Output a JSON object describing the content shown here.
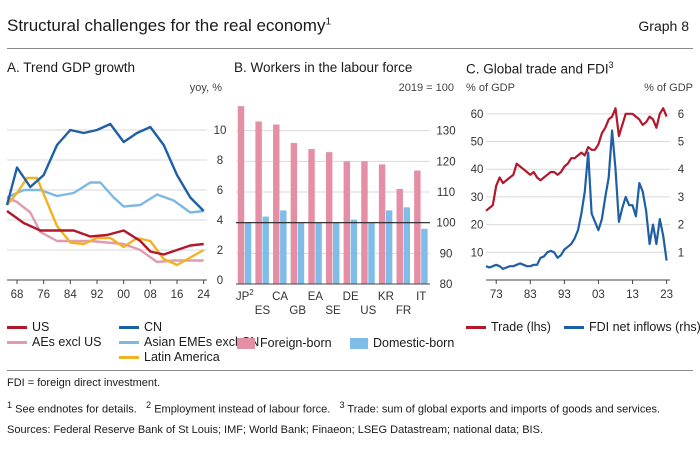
{
  "title": "Structural challenges for the real economy",
  "title_sup": "1",
  "graph_label": "Graph 8",
  "colors": {
    "us": "#b2182b",
    "cn": "#1f5fa6",
    "aes": "#e29ab1",
    "asia": "#7db8e0",
    "latam": "#f0b323",
    "foreign": "#e58fa6",
    "domestic": "#7fbde8",
    "trade": "#b2182b",
    "fdi": "#1f5fa6"
  },
  "chart_data": [
    {
      "id": "A",
      "type": "line",
      "title": "A. Trend GDP growth",
      "ylabel": "yoy, %",
      "ylim": [
        0,
        12
      ],
      "yticks": [
        0,
        2,
        4,
        6,
        8,
        10
      ],
      "xlim": [
        1965,
        2025
      ],
      "xticks": [
        1968,
        1976,
        1984,
        1992,
        2000,
        2008,
        2016,
        2024
      ],
      "xtick_labels": [
        "68",
        "76",
        "84",
        "92",
        "00",
        "08",
        "16",
        "24"
      ],
      "series": [
        {
          "name": "US",
          "key": "us",
          "x": [
            1965,
            1970,
            1975,
            1980,
            1985,
            1990,
            1995,
            2000,
            2005,
            2008,
            2012,
            2016,
            2020,
            2024
          ],
          "y": [
            4.6,
            3.8,
            3.3,
            3.3,
            3.3,
            2.9,
            3.0,
            3.3,
            2.6,
            1.9,
            1.7,
            2.0,
            2.3,
            2.4
          ]
        },
        {
          "name": "CN",
          "key": "cn",
          "x": [
            1965,
            1968,
            1972,
            1976,
            1980,
            1984,
            1988,
            1992,
            1996,
            2000,
            2004,
            2008,
            2012,
            2016,
            2020,
            2024
          ],
          "y": [
            5.0,
            7.5,
            6.2,
            7.0,
            9.0,
            10.0,
            9.8,
            10.0,
            10.4,
            9.2,
            9.8,
            10.2,
            9.0,
            7.0,
            5.5,
            4.6
          ]
        },
        {
          "name": "AEs excl US",
          "key": "aes",
          "x": [
            1965,
            1968,
            1972,
            1975,
            1980,
            1985,
            1990,
            1995,
            2000,
            2005,
            2010,
            2015,
            2020,
            2024
          ],
          "y": [
            5.5,
            5.2,
            4.5,
            3.2,
            2.6,
            2.6,
            2.6,
            2.5,
            2.4,
            2.0,
            1.2,
            1.3,
            1.3,
            1.3
          ]
        },
        {
          "name": "Asian EMEs excl CN",
          "key": "asia",
          "x": [
            1965,
            1970,
            1975,
            1980,
            1985,
            1990,
            1993,
            1997,
            2000,
            2005,
            2010,
            2015,
            2020,
            2024
          ],
          "y": [
            5.5,
            6.0,
            6.0,
            5.6,
            5.8,
            6.5,
            6.5,
            5.5,
            4.9,
            5.0,
            5.7,
            5.3,
            4.5,
            4.6
          ]
        },
        {
          "name": "Latin America",
          "key": "latam",
          "x": [
            1965,
            1968,
            1971,
            1974,
            1977,
            1980,
            1984,
            1988,
            1992,
            1996,
            2000,
            2004,
            2008,
            2012,
            2016,
            2020,
            2024
          ],
          "y": [
            5.0,
            5.8,
            6.8,
            6.8,
            5.2,
            3.6,
            2.5,
            2.4,
            2.8,
            2.8,
            2.2,
            2.8,
            2.6,
            1.4,
            1.0,
            1.5,
            2.0
          ]
        }
      ]
    },
    {
      "id": "B",
      "type": "bar",
      "title": "B. Workers in the labour force",
      "ylabel": "2019 = 100",
      "ylim": [
        80,
        140
      ],
      "yticks": [
        80,
        90,
        100,
        110,
        120,
        130
      ],
      "baseline": 100,
      "categories": [
        "JP",
        "ES",
        "CA",
        "GB",
        "EA",
        "SE",
        "DE",
        "US",
        "KR",
        "FR",
        "IT"
      ],
      "category_sup": [
        "2",
        "",
        "",
        "",
        "",
        "",
        "",
        "",
        "",
        "",
        ""
      ],
      "series": [
        {
          "name": "Foreign-born",
          "key": "foreign",
          "values": [
            138,
            133,
            132,
            126,
            124,
            123,
            120,
            120,
            119,
            111,
            117
          ]
        },
        {
          "name": "Domestic-born",
          "key": "domestic",
          "values": [
            100,
            102,
            104,
            100,
            100,
            100,
            101,
            100,
            104,
            105,
            98
          ]
        }
      ]
    },
    {
      "id": "C",
      "type": "line",
      "title": "C. Global trade and FDI",
      "title_sup": "3",
      "ylabel_left": "% of GDP",
      "ylabel_right": "% of GDP",
      "xlim": [
        1970,
        2024
      ],
      "xticks": [
        1973,
        1983,
        1993,
        2003,
        2013,
        2023
      ],
      "xtick_labels": [
        "73",
        "83",
        "93",
        "03",
        "13",
        "23"
      ],
      "ylim_left": [
        0,
        65
      ],
      "yticks_left": [
        10,
        20,
        30,
        40,
        50,
        60
      ],
      "ylim_right": [
        0,
        6.5
      ],
      "yticks_right": [
        1,
        2,
        3,
        4,
        5,
        6
      ],
      "series": [
        {
          "name": "Trade (lhs)",
          "key": "trade",
          "axis": "left",
          "x": [
            1970,
            1971,
            1972,
            1973,
            1974,
            1975,
            1976,
            1977,
            1978,
            1979,
            1980,
            1981,
            1982,
            1983,
            1984,
            1985,
            1986,
            1987,
            1988,
            1989,
            1990,
            1991,
            1992,
            1993,
            1994,
            1995,
            1996,
            1997,
            1998,
            1999,
            2000,
            2001,
            2002,
            2003,
            2004,
            2005,
            2006,
            2007,
            2008,
            2009,
            2010,
            2011,
            2012,
            2013,
            2014,
            2015,
            2016,
            2017,
            2018,
            2019,
            2020,
            2021,
            2022,
            2023
          ],
          "y": [
            25,
            26,
            27,
            34,
            37,
            35,
            36,
            37,
            38,
            42,
            41,
            40,
            39,
            38,
            39,
            37,
            36,
            37,
            38,
            39,
            39,
            38,
            39,
            41,
            42,
            44,
            44,
            45,
            46,
            45,
            48,
            47,
            47,
            49,
            53,
            55,
            58,
            59,
            62,
            52,
            56,
            60,
            60,
            60,
            59,
            58,
            56,
            57,
            59,
            58,
            55,
            60,
            62,
            59
          ]
        },
        {
          "name": "FDI net inflows (rhs)",
          "key": "fdi",
          "axis": "right",
          "x": [
            1970,
            1971,
            1972,
            1973,
            1974,
            1975,
            1976,
            1977,
            1978,
            1979,
            1980,
            1981,
            1982,
            1983,
            1984,
            1985,
            1986,
            1987,
            1988,
            1989,
            1990,
            1991,
            1992,
            1993,
            1994,
            1995,
            1996,
            1997,
            1998,
            1999,
            2000,
            2001,
            2002,
            2003,
            2004,
            2005,
            2006,
            2007,
            2008,
            2009,
            2010,
            2011,
            2012,
            2013,
            2014,
            2015,
            2016,
            2017,
            2018,
            2019,
            2020,
            2021,
            2022,
            2023
          ],
          "y": [
            0.5,
            0.45,
            0.5,
            0.55,
            0.5,
            0.4,
            0.45,
            0.5,
            0.5,
            0.55,
            0.6,
            0.55,
            0.5,
            0.5,
            0.55,
            0.55,
            0.8,
            0.85,
            1.0,
            1.05,
            1.0,
            0.8,
            0.9,
            1.1,
            1.2,
            1.3,
            1.5,
            1.8,
            2.4,
            3.2,
            4.6,
            2.4,
            2.1,
            1.8,
            2.2,
            3.0,
            3.7,
            5.4,
            4.0,
            2.1,
            2.6,
            3.0,
            2.7,
            2.7,
            2.3,
            3.5,
            3.2,
            2.5,
            1.3,
            2.0,
            1.3,
            2.2,
            1.6,
            0.7
          ]
        }
      ]
    }
  ],
  "notes": {
    "definitions": "FDI = foreign direct investment.",
    "footnote1_num": "1",
    "footnote1": "See endnotes for details.",
    "footnote2_num": "2",
    "footnote2": "Employment instead of labour force.",
    "footnote3_num": "3",
    "footnote3": "Trade: sum of global exports and imports of goods and services.",
    "sources": "Sources: Federal Reserve Bank of St Louis; IMF; World Bank; Finaeon; LSEG Datastream; national data; BIS."
  }
}
